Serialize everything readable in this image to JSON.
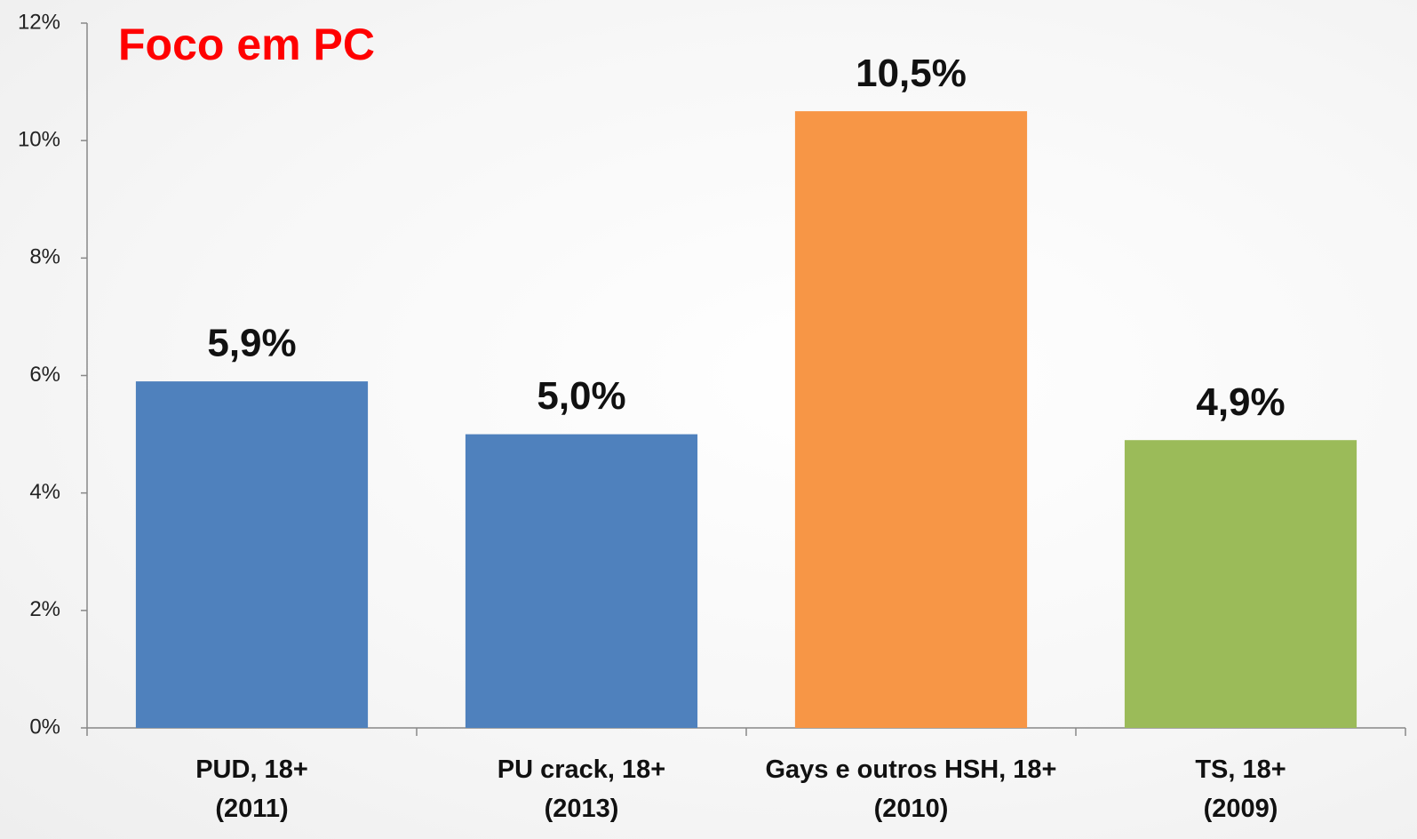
{
  "chart_data": {
    "type": "bar",
    "title": "Foco em PC",
    "categories": [
      "PUD, 18+\n(2011)",
      "PU crack, 18+\n(2013)",
      "Gays e outros HSH, 18+\n(2010)",
      "TS, 18+\n(2009)"
    ],
    "values": [
      5.9,
      5.0,
      10.5,
      4.9
    ],
    "value_labels": [
      "5,9%",
      "5,0%",
      "10,5%",
      "4,9%"
    ],
    "colors": [
      "#4f81bd",
      "#4f81bd",
      "#f79646",
      "#9bbb59"
    ],
    "ylim": [
      0,
      12
    ],
    "yticks": [
      {
        "value": 0,
        "label": "0%"
      },
      {
        "value": 2,
        "label": "2%"
      },
      {
        "value": 4,
        "label": "4%"
      },
      {
        "value": 6,
        "label": "6%"
      },
      {
        "value": 8,
        "label": "8%"
      },
      {
        "value": 10,
        "label": "10%"
      },
      {
        "value": 12,
        "label": "12%"
      }
    ],
    "grid": false
  }
}
